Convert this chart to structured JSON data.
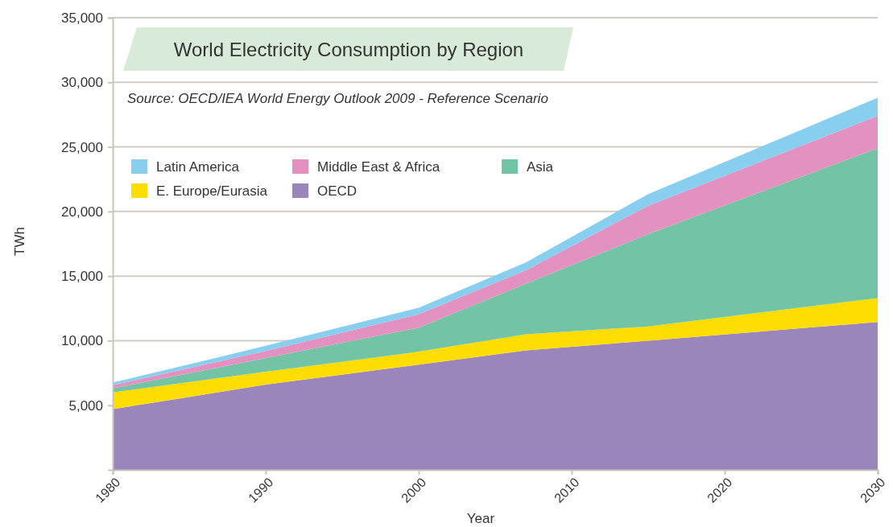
{
  "chart_data": {
    "type": "area",
    "stacked": true,
    "title": "World Electricity Consumption by Region",
    "annotations": [
      "Source: OECD/IEA World Energy Outlook 2009 - Reference Scenario"
    ],
    "xlabel": "Year",
    "ylabel": "TWh",
    "x": [
      1980,
      1990,
      2000,
      2007,
      2015,
      2030
    ],
    "series": [
      {
        "name": "OECD",
        "color": "#9b85bd",
        "values": [
          4700,
          6600,
          8150,
          9250,
          10000,
          11450
        ]
      },
      {
        "name": "E. Europe/Eurasia",
        "color": "#ffdd00",
        "values": [
          1300,
          1000,
          1000,
          1250,
          1100,
          1850
        ]
      },
      {
        "name": "Asia",
        "color": "#72c4a4",
        "values": [
          300,
          1050,
          1850,
          3900,
          7150,
          11600
        ]
      },
      {
        "name": "Middle East & Africa",
        "color": "#e391c1",
        "values": [
          250,
          550,
          1050,
          1050,
          2200,
          2500
        ]
      },
      {
        "name": "Latin America",
        "color": "#88cfef",
        "values": [
          200,
          400,
          500,
          600,
          900,
          1400
        ]
      }
    ],
    "xlim": [
      1980,
      2030
    ],
    "ylim": [
      0,
      35000
    ],
    "xticks": [
      1980,
      1990,
      2000,
      2010,
      2020,
      2030
    ],
    "yticks": [
      {
        "value": 5000,
        "label": "5,000"
      },
      {
        "value": 10000,
        "label": "10,000"
      },
      {
        "value": 15000,
        "label": "15,000"
      },
      {
        "value": 20000,
        "label": "20,000"
      },
      {
        "value": 25000,
        "label": "25,000"
      },
      {
        "value": 30000,
        "label": "30,000"
      },
      {
        "value": 35000,
        "label": "35,000"
      }
    ],
    "grid": "y",
    "legend": "top left"
  }
}
